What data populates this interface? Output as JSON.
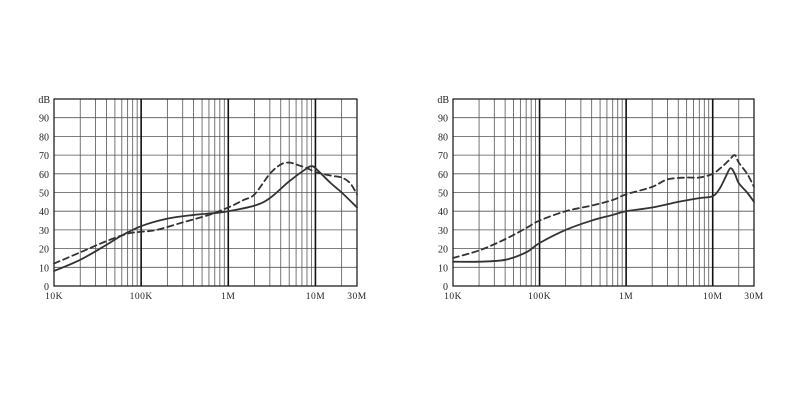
{
  "chart_data": [
    {
      "type": "line",
      "title": "",
      "xlabel": "",
      "ylabel": "dB",
      "xscale": "log",
      "xlim": [
        10000,
        30000000
      ],
      "ylim": [
        0,
        100
      ],
      "x_ticks": [
        {
          "value": 10000,
          "label": "10K"
        },
        {
          "value": 100000,
          "label": "100K"
        },
        {
          "value": 1000000,
          "label": "1M"
        },
        {
          "value": 10000000,
          "label": "10M"
        },
        {
          "value": 30000000,
          "label": "30M"
        }
      ],
      "y_ticks": [
        {
          "value": 0,
          "label": "0"
        },
        {
          "value": 10,
          "label": "10"
        },
        {
          "value": 20,
          "label": "20"
        },
        {
          "value": 30,
          "label": "30"
        },
        {
          "value": 40,
          "label": "40"
        },
        {
          "value": 50,
          "label": "50"
        },
        {
          "value": 60,
          "label": "60"
        },
        {
          "value": 70,
          "label": "70"
        },
        {
          "value": 80,
          "label": "80"
        },
        {
          "value": 90,
          "label": "90"
        }
      ],
      "grid": true,
      "legend": false,
      "series": [
        {
          "style": "solid",
          "color": "#333333",
          "x": [
            10000,
            20000,
            40000,
            60000,
            100000,
            200000,
            400000,
            700000,
            1000000,
            2000000,
            3000000,
            5000000,
            8000000,
            9000000,
            10000000,
            15000000,
            20000000,
            30000000
          ],
          "y": [
            8,
            14,
            22,
            27,
            32,
            36,
            38,
            39,
            40,
            43,
            47,
            56,
            63,
            64,
            63,
            55,
            50,
            42
          ]
        },
        {
          "style": "dashed",
          "color": "#333333",
          "x": [
            10000,
            20000,
            40000,
            70000,
            100000,
            150000,
            300000,
            600000,
            1000000,
            1500000,
            2000000,
            3000000,
            4000000,
            5000000,
            6000000,
            8000000,
            10000000,
            15000000,
            20000000,
            25000000,
            30000000
          ],
          "y": [
            12,
            18,
            24,
            28,
            29,
            30,
            34,
            38,
            42,
            46,
            49,
            60,
            65,
            66,
            65,
            63,
            61,
            59,
            58,
            55,
            49
          ]
        }
      ]
    },
    {
      "type": "line",
      "title": "",
      "xlabel": "",
      "ylabel": "dB",
      "xscale": "log",
      "xlim": [
        10000,
        30000000
      ],
      "ylim": [
        0,
        100
      ],
      "x_ticks": [
        {
          "value": 10000,
          "label": "10K"
        },
        {
          "value": 100000,
          "label": "100K"
        },
        {
          "value": 1000000,
          "label": "1M"
        },
        {
          "value": 10000000,
          "label": "10M"
        },
        {
          "value": 30000000,
          "label": "30M"
        }
      ],
      "y_ticks": [
        {
          "value": 0,
          "label": "0"
        },
        {
          "value": 10,
          "label": "10"
        },
        {
          "value": 20,
          "label": "20"
        },
        {
          "value": 30,
          "label": "30"
        },
        {
          "value": 40,
          "label": "40"
        },
        {
          "value": 50,
          "label": "50"
        },
        {
          "value": 60,
          "label": "60"
        },
        {
          "value": 70,
          "label": "70"
        },
        {
          "value": 80,
          "label": "80"
        },
        {
          "value": 90,
          "label": "90"
        }
      ],
      "grid": true,
      "legend": false,
      "series": [
        {
          "style": "solid",
          "color": "#333333",
          "x": [
            10000,
            20000,
            40000,
            70000,
            100000,
            200000,
            400000,
            700000,
            1000000,
            2000000,
            4000000,
            7000000,
            10000000,
            12000000,
            14000000,
            16000000,
            18000000,
            20000000,
            25000000,
            30000000
          ],
          "y": [
            13,
            13,
            14,
            18,
            23,
            30,
            35,
            38,
            40,
            42,
            45,
            47,
            48,
            52,
            58,
            63,
            60,
            55,
            50,
            45
          ]
        },
        {
          "style": "dashed",
          "color": "#333333",
          "x": [
            10000,
            20000,
            40000,
            70000,
            100000,
            200000,
            400000,
            700000,
            1000000,
            2000000,
            3000000,
            5000000,
            7000000,
            10000000,
            13000000,
            16000000,
            18000000,
            20000000,
            25000000,
            30000000
          ],
          "y": [
            15,
            19,
            25,
            31,
            35,
            40,
            43,
            46,
            49,
            53,
            57,
            58,
            58,
            60,
            64,
            68,
            70,
            66,
            60,
            53
          ]
        }
      ]
    }
  ]
}
